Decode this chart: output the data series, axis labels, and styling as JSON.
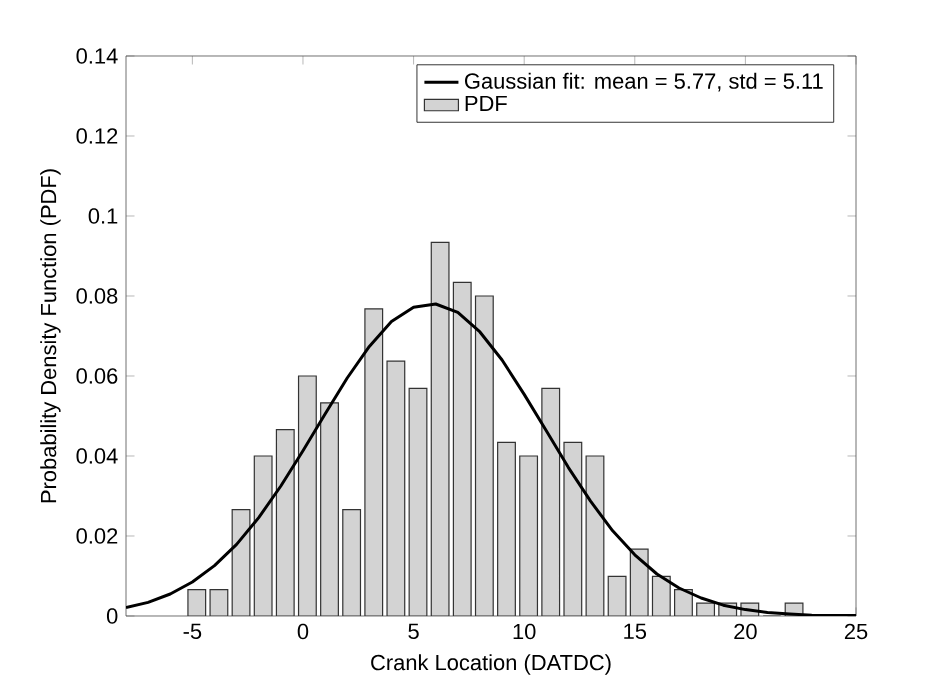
{
  "chart_data": {
    "type": "histogram",
    "xlabel": "Crank Location (DATDC)",
    "ylabel": "Probability Density Function (PDF)",
    "bins": [
      -5.3,
      -4.3,
      -3.3,
      -2.3,
      -1.3,
      -0.3,
      0.7,
      1.7,
      2.7,
      3.7,
      4.7,
      5.7,
      6.7,
      7.7,
      8.7,
      9.7,
      10.7,
      11.7,
      12.7,
      13.7,
      14.7,
      15.7,
      16.7,
      17.7,
      18.7,
      19.7,
      20.7,
      21.7,
      22.7
    ],
    "series": [
      {
        "name": "PDF",
        "color": "#d3d3d3",
        "values": [
          0.0066,
          0.0066,
          0.0266,
          0.04,
          0.0466,
          0.06,
          0.0533,
          0.0266,
          0.0768,
          0.0637,
          0.0569,
          0.0934,
          0.0834,
          0.08,
          0.0434,
          0.04,
          0.0569,
          0.0434,
          0.04,
          0.0099,
          0.0167,
          0.0099,
          0.0066,
          0.0032,
          0.0032,
          0.0032,
          0,
          0.0032
        ]
      },
      {
        "name": "Gaussian fit: mean = 5.77, std = 5.11",
        "type": "line",
        "color": "#000000",
        "x": [
          -8,
          -7,
          -6,
          -5,
          -4,
          -3,
          -2,
          -1,
          0,
          1,
          2,
          3,
          4,
          5,
          6,
          7,
          8,
          9,
          10,
          11,
          12,
          13,
          14,
          15,
          16,
          17,
          18,
          19,
          20,
          21,
          22,
          23,
          24,
          25
        ],
        "values": [
          0.0021,
          0.0034,
          0.0055,
          0.0085,
          0.0126,
          0.0179,
          0.0246,
          0.0325,
          0.0413,
          0.0505,
          0.0595,
          0.0674,
          0.0736,
          0.0772,
          0.078,
          0.0759,
          0.071,
          0.064,
          0.0554,
          0.0463,
          0.0371,
          0.0287,
          0.0213,
          0.0153,
          0.0105,
          0.007,
          0.0045,
          0.0027,
          0.0016,
          0.0009,
          0.0005,
          0.0002,
          0.0001,
          0.0001
        ]
      }
    ],
    "xlim": [
      -8,
      25
    ],
    "xticks": [
      -5,
      0,
      5,
      10,
      15,
      20,
      25
    ],
    "ylim": [
      0,
      0.14
    ],
    "yticks": [
      0,
      0.02,
      0.04,
      0.06,
      0.08,
      0.1,
      0.12,
      0.14
    ],
    "legend": "top right",
    "grid": false
  }
}
